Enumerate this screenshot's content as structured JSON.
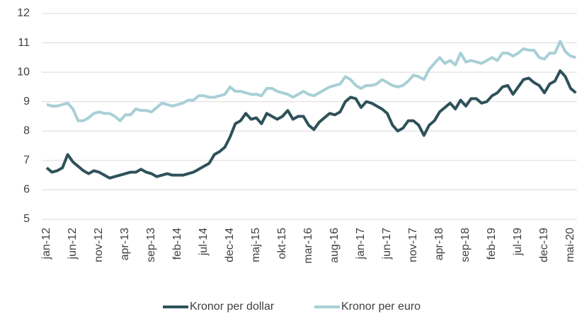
{
  "chart_data": {
    "type": "line",
    "categories": [
      "jan-12",
      null,
      null,
      null,
      null,
      "jun-12",
      null,
      null,
      null,
      null,
      "nov-12",
      null,
      null,
      null,
      null,
      "apr-13",
      null,
      null,
      null,
      null,
      "sep-13",
      null,
      null,
      null,
      null,
      "feb-14",
      null,
      null,
      null,
      null,
      "jul-14",
      null,
      null,
      null,
      null,
      "dec-14",
      null,
      null,
      null,
      null,
      "maj-15",
      null,
      null,
      null,
      null,
      "okt-15",
      null,
      null,
      null,
      null,
      "mar-16",
      null,
      null,
      null,
      null,
      "aug-16",
      null,
      null,
      null,
      null,
      "jan-17",
      null,
      null,
      null,
      null,
      "jun-17",
      null,
      null,
      null,
      null,
      "nov-17",
      null,
      null,
      null,
      null,
      "apr-18",
      null,
      null,
      null,
      null,
      "sep-18",
      null,
      null,
      null,
      null,
      "feb-19",
      null,
      null,
      null,
      null,
      "jul-19",
      null,
      null,
      null,
      null,
      "dec-19",
      null,
      null,
      null,
      null,
      "mai-20",
      null
    ],
    "series": [
      {
        "name": "Kronor per dollar",
        "color": "#2e5159",
        "values": [
          6.75,
          6.6,
          6.65,
          6.75,
          7.2,
          6.95,
          6.8,
          6.65,
          6.55,
          6.65,
          6.6,
          6.5,
          6.4,
          6.45,
          6.5,
          6.55,
          6.6,
          6.6,
          6.7,
          6.6,
          6.55,
          6.45,
          6.5,
          6.55,
          6.5,
          6.5,
          6.5,
          6.55,
          6.6,
          6.7,
          6.8,
          6.9,
          7.2,
          7.3,
          7.45,
          7.8,
          8.25,
          8.35,
          8.6,
          8.4,
          8.45,
          8.25,
          8.6,
          8.5,
          8.4,
          8.5,
          8.7,
          8.4,
          8.5,
          8.5,
          8.2,
          8.05,
          8.3,
          8.45,
          8.6,
          8.55,
          8.65,
          9.0,
          9.15,
          9.1,
          8.8,
          9.0,
          8.95,
          8.85,
          8.75,
          8.6,
          8.2,
          8.0,
          8.1,
          8.35,
          8.35,
          8.2,
          7.85,
          8.2,
          8.35,
          8.65,
          8.8,
          8.95,
          8.75,
          9.05,
          8.85,
          9.1,
          9.1,
          8.95,
          9.0,
          9.2,
          9.3,
          9.5,
          9.55,
          9.25,
          9.5,
          9.75,
          9.8,
          9.65,
          9.55,
          9.3,
          9.6,
          9.7,
          10.05,
          9.85,
          9.45,
          9.3
        ]
      },
      {
        "name": "Kronor per euro",
        "color": "#a8cfd6",
        "values": [
          8.9,
          8.85,
          8.85,
          8.9,
          8.95,
          8.75,
          8.35,
          8.35,
          8.45,
          8.6,
          8.65,
          8.6,
          8.6,
          8.5,
          8.35,
          8.55,
          8.55,
          8.75,
          8.7,
          8.7,
          8.65,
          8.8,
          8.95,
          8.9,
          8.85,
          8.9,
          8.95,
          9.05,
          9.05,
          9.2,
          9.2,
          9.15,
          9.15,
          9.2,
          9.25,
          9.5,
          9.35,
          9.35,
          9.3,
          9.25,
          9.25,
          9.2,
          9.45,
          9.45,
          9.35,
          9.3,
          9.25,
          9.15,
          9.25,
          9.35,
          9.25,
          9.2,
          9.3,
          9.4,
          9.5,
          9.55,
          9.6,
          9.85,
          9.75,
          9.55,
          9.45,
          9.55,
          9.55,
          9.6,
          9.75,
          9.65,
          9.55,
          9.5,
          9.55,
          9.7,
          9.9,
          9.85,
          9.75,
          10.1,
          10.3,
          10.5,
          10.3,
          10.4,
          10.25,
          10.65,
          10.35,
          10.4,
          10.35,
          10.3,
          10.4,
          10.5,
          10.4,
          10.65,
          10.65,
          10.55,
          10.65,
          10.8,
          10.75,
          10.75,
          10.5,
          10.45,
          10.65,
          10.65,
          11.05,
          10.7,
          10.55,
          10.5
        ]
      }
    ],
    "ylim": [
      5,
      12
    ],
    "yticks": [
      5,
      6,
      7,
      8,
      9,
      10,
      11,
      12
    ],
    "grid": true,
    "legend": "bottom"
  }
}
